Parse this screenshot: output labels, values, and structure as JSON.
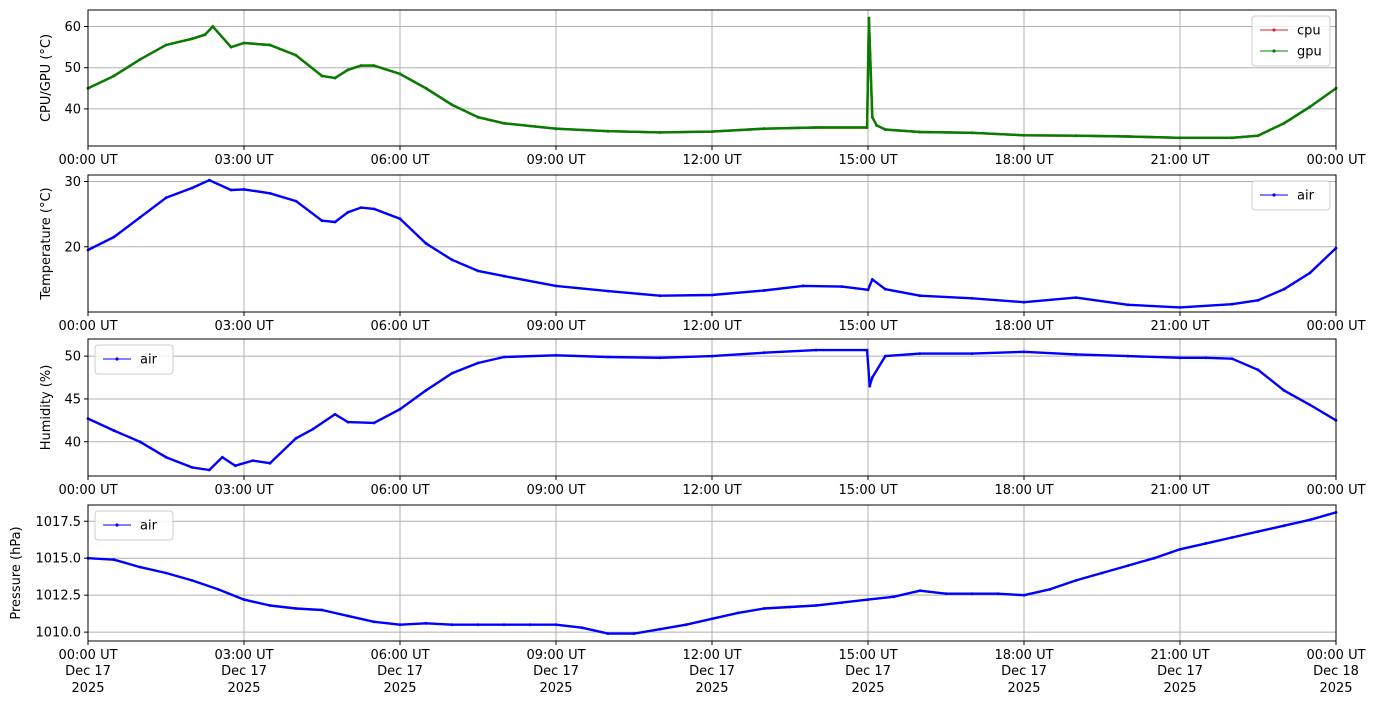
{
  "x_ticks": [
    "00:00 UT",
    "03:00 UT",
    "06:00 UT",
    "09:00 UT",
    "12:00 UT",
    "15:00 UT",
    "18:00 UT",
    "21:00 UT",
    "00:00 UT"
  ],
  "x_bottom_dates": [
    "Dec 17",
    "Dec 17",
    "Dec 17",
    "Dec 17",
    "Dec 17",
    "Dec 17",
    "Dec 17",
    "Dec 17",
    "Dec 18"
  ],
  "x_bottom_years": [
    "2025",
    "2025",
    "2025",
    "2025",
    "2025",
    "2025",
    "2025",
    "2025",
    "2025"
  ],
  "colors": {
    "cpu": "#d62728",
    "gpu": "#008000",
    "air": "#0000ff",
    "grid": "#b0b0b0"
  },
  "chart_data": [
    {
      "type": "line",
      "ylabel": "CPU/GPU (°C)",
      "ylim": [
        31,
        64
      ],
      "yticks": [
        40,
        50,
        60
      ],
      "xlim": [
        "2025-12-17 00:00",
        "2025-12-18 00:00"
      ],
      "grid": true,
      "legend": "top-right",
      "series": [
        {
          "name": "cpu",
          "x": [
            "00:00",
            "00:30",
            "01:00",
            "01:30",
            "02:00",
            "02:15",
            "02:24",
            "02:45",
            "03:00",
            "03:30",
            "04:00",
            "04:30",
            "04:45",
            "05:00",
            "05:15",
            "05:30",
            "06:00",
            "06:30",
            "07:00",
            "07:30",
            "08:00",
            "09:00",
            "10:00",
            "11:00",
            "12:00",
            "13:00",
            "14:00",
            "14:59",
            "15:01",
            "15:05",
            "15:10",
            "15:20",
            "16:00",
            "17:00",
            "18:00",
            "19:00",
            "20:00",
            "21:00",
            "22:00",
            "22:30",
            "23:00",
            "23:30",
            "24:00"
          ],
          "values": [
            45,
            48,
            52,
            55.5,
            57,
            58,
            60,
            55,
            56,
            55.5,
            53,
            48,
            47.5,
            49.5,
            50.5,
            50.5,
            48.5,
            45,
            41,
            38,
            36.5,
            35.2,
            34.6,
            34.3,
            34.5,
            35.2,
            35.5,
            35.5,
            62,
            38,
            36,
            35,
            34.4,
            34.2,
            33.6,
            33.5,
            33.3,
            33,
            33,
            33.5,
            36.5,
            40.5,
            45
          ]
        },
        {
          "name": "gpu",
          "x": [
            "00:00",
            "00:30",
            "01:00",
            "01:30",
            "02:00",
            "02:15",
            "02:24",
            "02:45",
            "03:00",
            "03:30",
            "04:00",
            "04:30",
            "04:45",
            "05:00",
            "05:15",
            "05:30",
            "06:00",
            "06:30",
            "07:00",
            "07:30",
            "08:00",
            "09:00",
            "10:00",
            "11:00",
            "12:00",
            "13:00",
            "14:00",
            "14:59",
            "15:01",
            "15:05",
            "15:10",
            "15:20",
            "16:00",
            "17:00",
            "18:00",
            "19:00",
            "20:00",
            "21:00",
            "22:00",
            "22:30",
            "23:00",
            "23:30",
            "24:00"
          ],
          "values": [
            45,
            48,
            52,
            55.5,
            57,
            58,
            60,
            55,
            56,
            55.5,
            53,
            48,
            47.5,
            49.5,
            50.5,
            50.5,
            48.5,
            45,
            41,
            38,
            36.5,
            35.2,
            34.6,
            34.3,
            34.5,
            35.2,
            35.5,
            35.5,
            62,
            38,
            36,
            35,
            34.4,
            34.2,
            33.6,
            33.5,
            33.3,
            33,
            33,
            33.5,
            36.5,
            40.5,
            45
          ]
        }
      ]
    },
    {
      "type": "line",
      "ylabel": "Temperature (°C)",
      "ylim": [
        10,
        31
      ],
      "yticks": [
        20,
        30
      ],
      "xlim": [
        "2025-12-17 00:00",
        "2025-12-18 00:00"
      ],
      "grid": true,
      "legend": "top-right",
      "series": [
        {
          "name": "air",
          "x": [
            "00:00",
            "00:30",
            "01:00",
            "01:30",
            "02:00",
            "02:20",
            "02:45",
            "03:00",
            "03:30",
            "04:00",
            "04:30",
            "04:45",
            "05:00",
            "05:15",
            "05:30",
            "06:00",
            "06:30",
            "07:00",
            "07:30",
            "08:00",
            "09:00",
            "10:00",
            "11:00",
            "12:00",
            "13:00",
            "13:45",
            "14:30",
            "15:00",
            "15:05",
            "15:20",
            "16:00",
            "17:00",
            "18:00",
            "19:00",
            "20:00",
            "21:00",
            "22:00",
            "22:30",
            "23:00",
            "23:30",
            "24:00"
          ],
          "values": [
            19.5,
            21.5,
            24.5,
            27.5,
            29,
            30.2,
            28.7,
            28.8,
            28.2,
            27,
            24,
            23.8,
            25.3,
            26,
            25.8,
            24.3,
            20.5,
            18,
            16.3,
            15.5,
            14,
            13.2,
            12.5,
            12.6,
            13.3,
            14,
            13.9,
            13.4,
            15,
            13.5,
            12.5,
            12.1,
            11.5,
            12.2,
            11.1,
            10.7,
            11.2,
            11.8,
            13.5,
            16,
            19.8
          ]
        }
      ]
    },
    {
      "type": "line",
      "ylabel": "Humidity (%)",
      "ylim": [
        36,
        52
      ],
      "yticks": [
        40,
        45,
        50
      ],
      "xlim": [
        "2025-12-17 00:00",
        "2025-12-18 00:00"
      ],
      "grid": true,
      "legend": "top-left",
      "series": [
        {
          "name": "air",
          "x": [
            "00:00",
            "00:30",
            "01:00",
            "01:30",
            "02:00",
            "02:20",
            "02:35",
            "02:50",
            "03:10",
            "03:30",
            "04:00",
            "04:20",
            "04:45",
            "05:00",
            "05:30",
            "06:00",
            "06:30",
            "07:00",
            "07:30",
            "08:00",
            "09:00",
            "10:00",
            "11:00",
            "12:00",
            "13:00",
            "14:00",
            "14:59",
            "15:02",
            "15:05",
            "15:20",
            "16:00",
            "17:00",
            "18:00",
            "19:00",
            "20:00",
            "21:00",
            "21:30",
            "22:00",
            "22:30",
            "23:00",
            "23:30",
            "24:00"
          ],
          "values": [
            42.7,
            41.3,
            40,
            38.2,
            37,
            36.7,
            38.2,
            37.2,
            37.8,
            37.5,
            40.4,
            41.5,
            43.2,
            42.3,
            42.2,
            43.8,
            46,
            48,
            49.2,
            49.9,
            50.1,
            49.9,
            49.8,
            50,
            50.4,
            50.7,
            50.7,
            46.5,
            47.5,
            50,
            50.3,
            50.3,
            50.5,
            50.2,
            50,
            49.8,
            49.8,
            49.7,
            48.4,
            46,
            44.3,
            42.5
          ]
        }
      ]
    },
    {
      "type": "line",
      "ylabel": "Pressure (hPa)",
      "ylim": [
        1009.4,
        1018.6
      ],
      "yticks": [
        1010.0,
        1012.5,
        1015.0,
        1017.5
      ],
      "ytick_labels": [
        "1010.0",
        "1012.5",
        "1015.0",
        "1017.5"
      ],
      "xlim": [
        "2025-12-17 00:00",
        "2025-12-18 00:00"
      ],
      "grid": true,
      "legend": "top-left",
      "series": [
        {
          "name": "air",
          "x": [
            "00:00",
            "00:30",
            "01:00",
            "01:30",
            "02:00",
            "02:30",
            "03:00",
            "03:30",
            "04:00",
            "04:30",
            "05:00",
            "05:30",
            "06:00",
            "06:30",
            "07:00",
            "07:30",
            "08:00",
            "08:30",
            "09:00",
            "09:30",
            "10:00",
            "10:30",
            "11:00",
            "11:30",
            "12:00",
            "12:30",
            "13:00",
            "13:30",
            "14:00",
            "14:30",
            "15:00",
            "15:30",
            "16:00",
            "16:30",
            "17:00",
            "17:30",
            "18:00",
            "18:30",
            "19:00",
            "19:30",
            "20:00",
            "20:30",
            "21:00",
            "21:30",
            "22:00",
            "22:30",
            "23:00",
            "23:30",
            "24:00"
          ],
          "values": [
            1015,
            1014.9,
            1014.4,
            1014,
            1013.5,
            1012.9,
            1012.2,
            1011.8,
            1011.6,
            1011.5,
            1011.1,
            1010.7,
            1010.5,
            1010.6,
            1010.5,
            1010.5,
            1010.5,
            1010.5,
            1010.5,
            1010.3,
            1009.9,
            1009.9,
            1010.2,
            1010.5,
            1010.9,
            1011.3,
            1011.6,
            1011.7,
            1011.8,
            1012,
            1012.2,
            1012.4,
            1012.8,
            1012.6,
            1012.6,
            1012.6,
            1012.5,
            1012.9,
            1013.5,
            1014,
            1014.5,
            1015,
            1015.6,
            1016,
            1016.4,
            1016.8,
            1017.2,
            1017.6,
            1018.1
          ]
        }
      ]
    }
  ]
}
